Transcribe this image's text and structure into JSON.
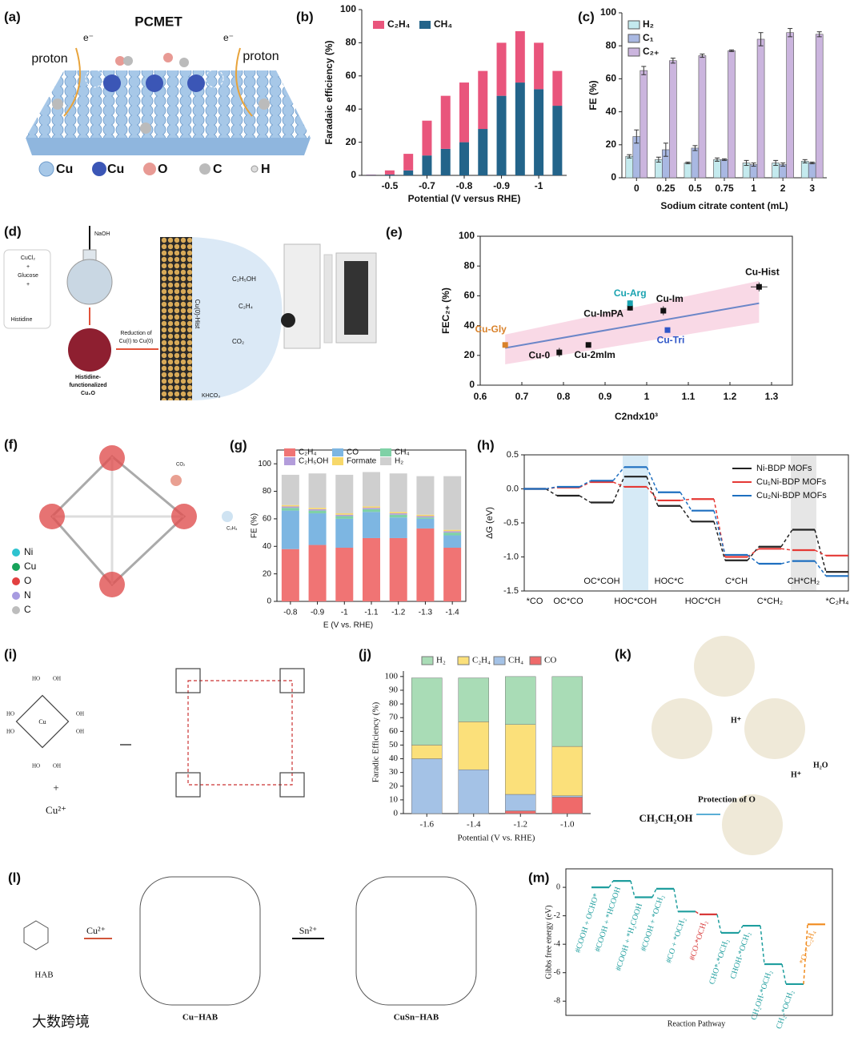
{
  "chart_data": [
    {
      "type": "bar",
      "panel": "(b)",
      "stack": "top-first",
      "categories": [
        null,
        "-0.5",
        null,
        "-0.7",
        null,
        "-0.8",
        null,
        "-0.9",
        null,
        "-1",
        null
      ],
      "series": [
        {
          "name": "C₂H₄",
          "color": "#e9557c",
          "values": [
            0.2,
            2.5,
            10,
            21,
            32,
            36,
            35,
            32,
            31,
            28,
            21
          ]
        },
        {
          "name": "CH₄",
          "color": "#23648a",
          "values": [
            0.3,
            0.5,
            3,
            12,
            16,
            20,
            28,
            48,
            56,
            52,
            42
          ]
        }
      ],
      "ylim": [
        0,
        100
      ],
      "yticks": [
        0,
        20,
        40,
        60,
        80,
        100
      ],
      "ylabel": "Faradaic efficiency (%)",
      "xlabel": "Potential (V versus RHE)"
    },
    {
      "type": "bar",
      "panel": "(c)",
      "categories": [
        "0",
        "0.25",
        "0.5",
        "0.75",
        "1",
        "2",
        "3"
      ],
      "series": [
        {
          "name": "H₂",
          "color": "#c4eaee",
          "values": [
            13,
            11,
            9,
            11,
            9,
            9,
            10
          ],
          "errors": [
            1,
            1.5,
            0.5,
            1,
            1.5,
            1.5,
            1
          ]
        },
        {
          "name": "C₁",
          "color": "#a9b8e2",
          "values": [
            25,
            17,
            18,
            11,
            8,
            8,
            9
          ],
          "errors": [
            4,
            4,
            1.5,
            0.5,
            1,
            1,
            0.5
          ]
        },
        {
          "name": "C₂₊",
          "color": "#cbb5de",
          "values": [
            65,
            71,
            74,
            77,
            84,
            88,
            87
          ],
          "errors": [
            2.5,
            1.5,
            1,
            0.5,
            4,
            2.5,
            1.5
          ]
        }
      ],
      "ylim": [
        0,
        100
      ],
      "yticks": [
        0,
        20,
        40,
        60,
        80,
        100
      ],
      "ylabel": "FE (%)",
      "xlabel": "Sodium citrate content (mL)"
    },
    {
      "type": "scatter",
      "panel": "(e)",
      "labels": [
        "Cu-Gly",
        "Cu-0",
        "Cu-2mIm",
        "Cu-ImPA",
        "Cu-Arg",
        "Cu-Im",
        "Cu-Tri",
        "Cu-Hist"
      ],
      "x": [
        0.66,
        0.79,
        0.86,
        0.96,
        0.96,
        1.04,
        1.05,
        1.27
      ],
      "values": [
        27,
        22,
        27,
        52,
        55,
        50,
        37,
        66
      ],
      "yerr": [
        0,
        3,
        1,
        2,
        2,
        3,
        0,
        3
      ],
      "xerr": [
        0,
        0,
        0,
        0,
        0,
        0,
        0,
        0.02
      ],
      "colors": [
        "#d9822b",
        "#111111",
        "#111111",
        "#111111",
        "#1aa3b0",
        "#111111",
        "#2f56c8",
        "#111111"
      ],
      "fit": {
        "x": [
          0.66,
          1.27
        ],
        "values": [
          25,
          55
        ],
        "color": "#6b86c8"
      },
      "band": {
        "x": [
          0.66,
          1.27
        ],
        "lower": [
          14,
          42
        ],
        "upper": [
          34,
          70
        ],
        "color": "#f8cfe0"
      },
      "xlim": [
        0.6,
        1.35
      ],
      "xticks": [
        0.6,
        0.7,
        0.8,
        0.9,
        1,
        1.1,
        1.2,
        1.3
      ],
      "ylim": [
        0,
        100
      ],
      "yticks": [
        0,
        20,
        40,
        60,
        80,
        100
      ],
      "ylabel": "FEC₂₊ (%)",
      "xlabel": "C2ndx10³"
    },
    {
      "type": "bar",
      "panel": "(g)",
      "stack": "bottom-first",
      "categories": [
        "-0.8",
        "-0.9",
        "-1",
        "-1.1",
        "-1.2",
        "-1.3",
        "-1.4"
      ],
      "series": [
        {
          "name": "C₂H₄",
          "color": "#f07474",
          "values": [
            38,
            41,
            39,
            46,
            46,
            53,
            39
          ]
        },
        {
          "name": "CO",
          "color": "#7db6e2",
          "values": [
            28,
            23,
            21,
            19,
            15,
            7,
            9
          ]
        },
        {
          "name": "CH₄",
          "color": "#7fd1a6",
          "values": [
            2,
            2,
            2,
            2,
            2,
            1,
            2
          ]
        },
        {
          "name": "C₂H₅OH",
          "color": "#b39ddb",
          "values": [
            1,
            1,
            1,
            1,
            1,
            1,
            1
          ]
        },
        {
          "name": "Formate",
          "color": "#f7d86a",
          "values": [
            1,
            1,
            1,
            1,
            1,
            1,
            1
          ]
        },
        {
          "name": "H₂",
          "color": "#cfcfcf",
          "values": [
            22,
            25,
            28,
            25,
            28,
            28,
            39
          ]
        }
      ],
      "ylim": [
        0,
        110
      ],
      "yticks": [
        0,
        20,
        40,
        60,
        80,
        100
      ],
      "ylabel": "FE (%)",
      "xlabel": "E (V vs. RHE)"
    },
    {
      "type": "energy-profile",
      "panel": "(h)",
      "categories": [
        "*CO",
        "OC*CO",
        "OC*COH",
        "HOC*COH",
        "HOC*C",
        "HOC*CH",
        "C*CH",
        "C*CH₂",
        "CH*CH₂",
        "*C₂H₄"
      ],
      "series": [
        {
          "name": "Ni-BDP MOFs",
          "color": "#222222",
          "values": [
            0,
            -0.1,
            -0.2,
            0.18,
            -0.25,
            -0.48,
            -1.05,
            -0.85,
            -0.6,
            -1.22
          ]
        },
        {
          "name": "Cu₁Ni-BDP MOFs",
          "color": "#e53935",
          "values": [
            0,
            0.02,
            0.1,
            0.03,
            -0.17,
            -0.15,
            -1.0,
            -0.88,
            -0.9,
            -0.98
          ]
        },
        {
          "name": "Cu₂Ni-BDP MOFs",
          "color": "#1e6fc0",
          "values": [
            0,
            0.03,
            0.12,
            0.32,
            -0.05,
            -0.32,
            -0.97,
            -1.1,
            -1.06,
            -1.28
          ]
        }
      ],
      "ylim": [
        -1.5,
        0.5
      ],
      "yticks": [
        -1.5,
        {
          "value": -1,
          "label": "-1.0"
        },
        -0.5,
        {
          "value": 0,
          "label": "0.0"
        },
        0.5
      ],
      "ylabel": "ΔG (eV)"
    },
    {
      "type": "bar",
      "panel": "(j)",
      "stack": "top-first",
      "categories": [
        "-1.6",
        "-1.4",
        "-1.2",
        "-1.0"
      ],
      "series": [
        {
          "name": "H₂",
          "color": "#a9dcb6",
          "values": [
            49,
            32,
            35,
            51
          ]
        },
        {
          "name": "C₂H₄",
          "color": "#fbe07a",
          "values": [
            10,
            35,
            51,
            36
          ]
        },
        {
          "name": "CH₄",
          "color": "#a4c2e6",
          "values": [
            40,
            32,
            12,
            1
          ]
        },
        {
          "name": "CO",
          "color": "#ef6a6a",
          "values": [
            0,
            0,
            2,
            12
          ]
        }
      ],
      "ylim": [
        0,
        104
      ],
      "yticks": [
        0,
        10,
        20,
        30,
        40,
        50,
        60,
        70,
        80,
        90,
        100
      ],
      "ylabel": "Faradic Efficiency (%)",
      "xlabel": "Potential (V vs. RHE)"
    },
    {
      "type": "energy-profile",
      "panel": "(m)",
      "categories": [
        "#COOH + OCHO*",
        "#COOH + *HCOOH",
        "#COOH + *H₂COOH",
        "#COOH + *OCH₂",
        "#CO + *OCH₂",
        "#CO-*OCH₂",
        "CHO*-*OCH₂",
        "CHOH-*OCH₂",
        "CH₂OH-*OCH₂",
        "CH₂-*OCH₂",
        "*O + C₂H₄"
      ],
      "series": [
        {
          "values": [
            0,
            0.45,
            -0.7,
            -0.1,
            -1.7,
            -1.9,
            -3.2,
            -2.7,
            -5.4,
            -6.8,
            -2.6
          ],
          "point_colors": [
            "#1f9e9e",
            "#1f9e9e",
            "#1f9e9e",
            "#1f9e9e",
            "#1f9e9e",
            "#d83a3a",
            "#1f9e9e",
            "#1f9e9e",
            "#1f9e9e",
            "#1f9e9e",
            "#f08a1c"
          ]
        }
      ],
      "ylim": [
        -9,
        1.3
      ],
      "yticks": [
        0,
        -2,
        -4,
        -6,
        -8
      ],
      "ylabel": "Gibbs free energy (eV)",
      "xlabel": "Reaction Pathway"
    }
  ],
  "figures": {
    "a": {
      "panel": "(a)",
      "title": "PCMET",
      "proton_left": "proton",
      "proton_right": "proton",
      "electron_left": "e⁻",
      "electron_right": "e⁻",
      "legend": [
        "Cu",
        "Cu",
        "O",
        "C",
        "H"
      ]
    },
    "d": {
      "panel": "(d)",
      "base": "NaOH",
      "reagents": [
        "CuCl₂",
        "+",
        "Glucose",
        "+"
      ],
      "ligand": "Histidine",
      "step": [
        "Reduction of",
        "Cu(I) to Cu(0)"
      ],
      "product": [
        "Histidine-",
        "functionalized",
        "Cu₂O"
      ],
      "electrode": "Cu(0)-Hist",
      "products": [
        "C₂H₅OH",
        "C₂H₄"
      ],
      "reactant": "CO₂",
      "electrolyte": "KHCO₃"
    },
    "f": {
      "panel": "(f)",
      "legend": [
        "Ni",
        "Cu",
        "O",
        "N",
        "C"
      ],
      "reactant": "CO₂",
      "product": "C₂H₄"
    },
    "i": {
      "panel": "(i)",
      "plus": "+",
      "ion": "Cu²⁺",
      "metal": "Cu",
      "groups": [
        "HO",
        "OH",
        "HO",
        "OH",
        "HO",
        "OH",
        "HO",
        "OH"
      ]
    },
    "k": {
      "panel": "(k)",
      "proton_1": "H⁺",
      "proton_2": "H⁺",
      "water": "H₂O",
      "note": "Protection of O",
      "product": "CH₃CH₂OH"
    },
    "l": {
      "panel": "(l)",
      "reactant": "HAB",
      "ion_1": "Cu²⁺",
      "ion_2": "Sn²⁺",
      "product_1": "Cu−HAB",
      "product_2": "CuSn−HAB"
    },
    "watermark": "大数跨境"
  }
}
